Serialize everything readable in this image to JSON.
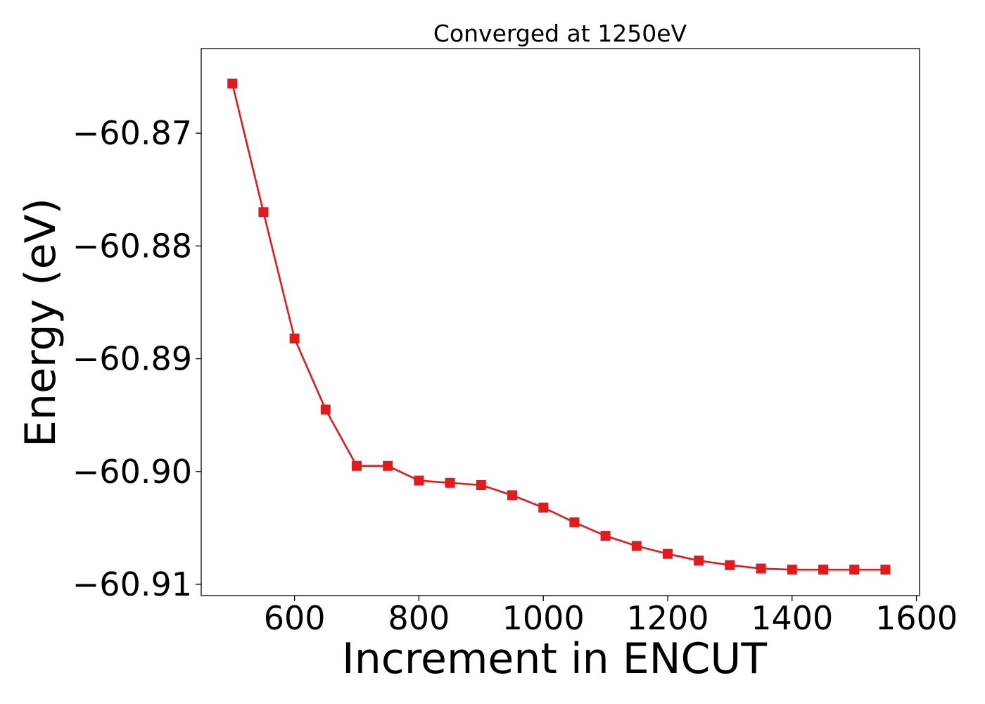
{
  "chart_data": {
    "type": "line",
    "title": "Converged at 1250eV",
    "xlabel": "Increment in ENCUT",
    "ylabel": "Energy (eV)",
    "xlim": [
      450,
      1605
    ],
    "ylim": [
      -60.911,
      -60.8625
    ],
    "x_ticks": [
      600,
      800,
      1000,
      1200,
      1400,
      1600
    ],
    "y_ticks": [
      -60.87,
      -60.88,
      -60.89,
      -60.9,
      -60.91
    ],
    "x_tick_labels": [
      "600",
      "800",
      "1000",
      "1200",
      "1400",
      "1600"
    ],
    "y_tick_labels": [
      "−60.87",
      "−60.88",
      "−60.89",
      "−60.90",
      "−60.91"
    ],
    "grid": false,
    "series": [
      {
        "color": "#e31a1c",
        "marker": "square",
        "x": [
          500,
          550,
          600,
          650,
          700,
          750,
          800,
          850,
          900,
          950,
          1000,
          1050,
          1100,
          1150,
          1200,
          1250,
          1300,
          1350,
          1400,
          1450,
          1500,
          1550
        ],
        "y": [
          -60.8656,
          -60.877,
          -60.8882,
          -60.8945,
          -60.8995,
          -60.8995,
          -60.9008,
          -60.901,
          -60.9012,
          -60.9021,
          -60.9032,
          -60.9045,
          -60.9057,
          -60.9066,
          -60.9073,
          -60.9079,
          -60.9083,
          -60.9086,
          -60.9087,
          -60.9087,
          -60.9087,
          -60.9087
        ]
      }
    ]
  }
}
